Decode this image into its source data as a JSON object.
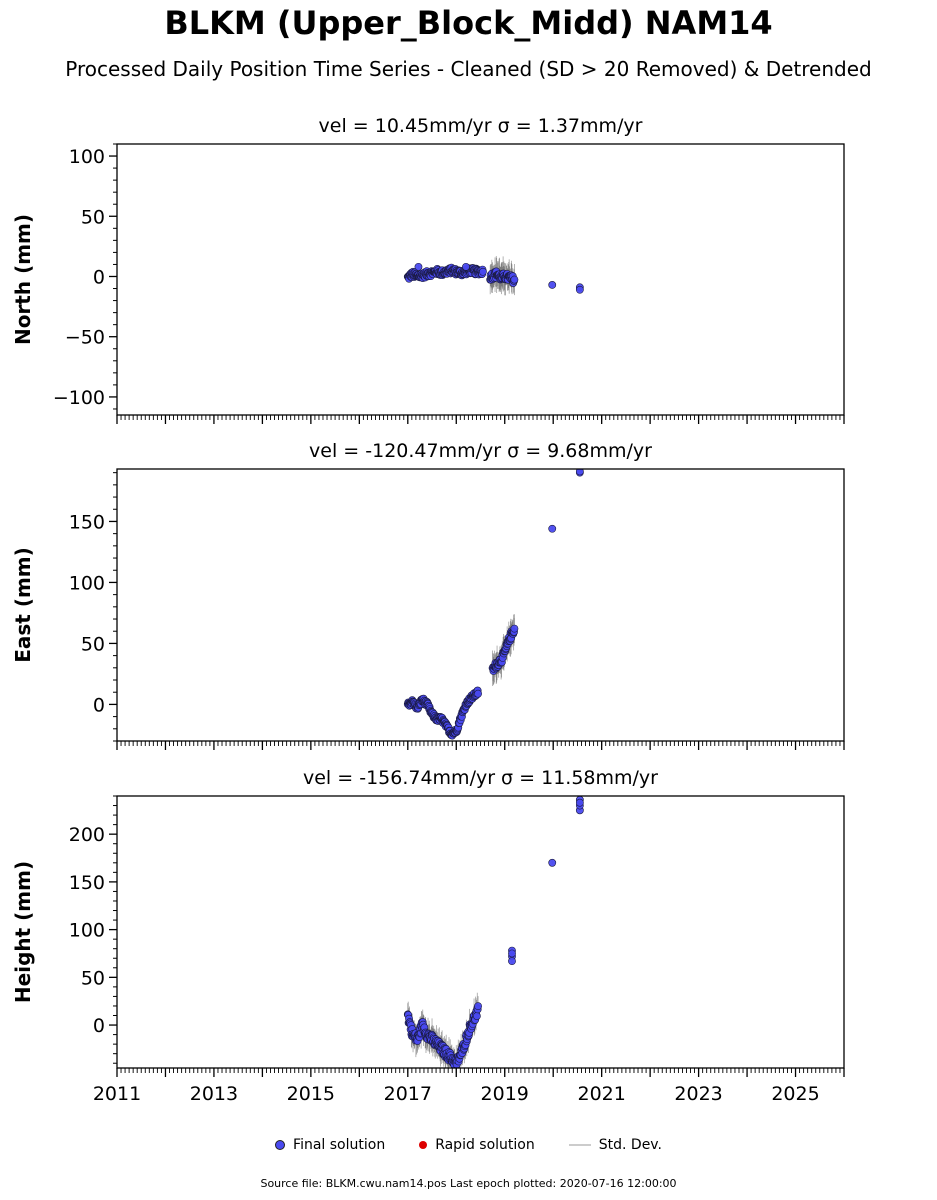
{
  "title": "BLKM (Upper_Block_Midd) NAM14",
  "subtitle": "Processed Daily Position Time Series - Cleaned (SD > 20 Removed) & Detrended",
  "legend": {
    "final": "Final solution",
    "rapid": "Rapid solution",
    "std": "Std. Dev."
  },
  "footer": "Source file: BLKM.cwu.nam14.pos  Last epoch plotted: 2020-07-16 12:00:00",
  "colors": {
    "final": "#4a4af0",
    "rapid": "#dd0000",
    "std": "#cccccc",
    "errbar": "#555555"
  },
  "chart_data": [
    {
      "type": "scatter",
      "title": "vel = 10.45mm/yr   σ = 1.37mm/yr",
      "ylabel": "North (mm)",
      "xlim": [
        2011,
        2026
      ],
      "ylim": [
        -115,
        110
      ],
      "yticks": [
        -100,
        -50,
        0,
        50,
        100
      ],
      "yticklabels": [
        "−100",
        "−50",
        "0",
        "50",
        "100"
      ],
      "x_tick_labels": [],
      "series": [
        {
          "segments": [
            {
              "x0": 2017.0,
              "x1": 2018.55,
              "pts": [
                [
                  0.0,
                  -1
                ],
                [
                  0.1,
                  2
                ],
                [
                  0.2,
                  0
                ],
                [
                  0.3,
                  1
                ],
                [
                  0.4,
                  2
                ],
                [
                  0.5,
                  3
                ],
                [
                  0.6,
                  4
                ],
                [
                  0.7,
                  3
                ],
                [
                  0.8,
                  4
                ],
                [
                  0.9,
                  5
                ],
                [
                  1.0,
                  4
                ],
                [
                  1.1,
                  3
                ],
                [
                  1.2,
                  4
                ],
                [
                  1.3,
                  5
                ],
                [
                  1.4,
                  4
                ],
                [
                  1.55,
                  4
                ]
              ],
              "spread": 2.5,
              "err": 1.5
            },
            {
              "x0": 2018.7,
              "x1": 2019.2,
              "pts": [
                [
                  0.0,
                  0
                ],
                [
                  0.15,
                  1
                ],
                [
                  0.3,
                  2
                ],
                [
                  0.45,
                  -1
                ],
                [
                  0.6,
                  0
                ],
                [
                  0.75,
                  -1
                ],
                [
                  0.9,
                  -2
                ],
                [
                  1.0,
                  -3
                ]
              ],
              "spread": 3,
              "err": 10
            }
          ],
          "extra": [
            [
              2017.22,
              8
            ],
            [
              2018.2,
              8
            ],
            [
              2019.98,
              -7
            ],
            [
              2020.55,
              -9
            ],
            [
              2020.55,
              -11
            ]
          ]
        }
      ]
    },
    {
      "type": "scatter",
      "title": "vel = -120.47mm/yr   σ = 9.68mm/yr",
      "ylabel": "East (mm)",
      "xlim": [
        2011,
        2026
      ],
      "ylim": [
        -30,
        193
      ],
      "yticks": [
        0,
        50,
        100,
        150
      ],
      "yticklabels": [
        "0",
        "50",
        "100",
        "150"
      ],
      "x_tick_labels": [],
      "series": [
        {
          "segments": [
            {
              "x0": 2017.0,
              "x1": 2018.45,
              "pts": [
                [
                  0.0,
                  0
                ],
                [
                  0.1,
                  2
                ],
                [
                  0.2,
                  -3
                ],
                [
                  0.3,
                  4
                ],
                [
                  0.4,
                  0
                ],
                [
                  0.5,
                  -8
                ],
                [
                  0.6,
                  -12
                ],
                [
                  0.7,
                  -12
                ],
                [
                  0.8,
                  -18
                ],
                [
                  0.9,
                  -24
                ],
                [
                  1.0,
                  -22
                ],
                [
                  1.1,
                  -10
                ],
                [
                  1.2,
                  0
                ],
                [
                  1.3,
                  5
                ],
                [
                  1.45,
                  10
                ]
              ],
              "spread": 2,
              "err": 1.5
            },
            {
              "x0": 2018.75,
              "x1": 2019.2,
              "pts": [
                [
                  0.0,
                  28
                ],
                [
                  0.15,
                  32
                ],
                [
                  0.3,
                  35
                ],
                [
                  0.45,
                  38
                ],
                [
                  0.6,
                  45
                ],
                [
                  0.8,
                  55
                ],
                [
                  1.0,
                  62
                ]
              ],
              "spread": 3,
              "err": 10
            }
          ],
          "extra": [
            [
              2019.98,
              144
            ],
            [
              2020.55,
              190
            ],
            [
              2020.55,
              191
            ]
          ]
        }
      ]
    },
    {
      "type": "scatter",
      "title": "vel = -156.74mm/yr   σ = 11.58mm/yr",
      "ylabel": "Height (mm)",
      "xlim": [
        2011,
        2026
      ],
      "ylim": [
        -45,
        240
      ],
      "yticks": [
        0,
        50,
        100,
        150,
        200
      ],
      "yticklabels": [
        "0",
        "50",
        "100",
        "150",
        "200"
      ],
      "x_tick_labels": [
        "2011",
        "2013",
        "2015",
        "2017",
        "2019",
        "2021",
        "2023",
        "2025"
      ],
      "series": [
        {
          "segments": [
            {
              "x0": 2017.0,
              "x1": 2018.45,
              "pts": [
                [
                  0.0,
                  10
                ],
                [
                  0.1,
                  -10
                ],
                [
                  0.2,
                  -15
                ],
                [
                  0.3,
                  0
                ],
                [
                  0.4,
                  -10
                ],
                [
                  0.5,
                  -15
                ],
                [
                  0.6,
                  -20
                ],
                [
                  0.7,
                  -25
                ],
                [
                  0.8,
                  -30
                ],
                [
                  0.9,
                  -35
                ],
                [
                  1.0,
                  -40
                ],
                [
                  1.1,
                  -30
                ],
                [
                  1.2,
                  -15
                ],
                [
                  1.3,
                  0
                ],
                [
                  1.45,
                  15
                ]
              ],
              "spread": 5,
              "err": 12
            }
          ],
          "extra": [
            [
              2019.15,
              72
            ],
            [
              2019.15,
              78
            ],
            [
              2019.15,
              67
            ],
            [
              2019.15,
              75
            ],
            [
              2019.98,
              170
            ],
            [
              2020.55,
              225
            ],
            [
              2020.55,
              230
            ],
            [
              2020.55,
              236
            ],
            [
              2020.55,
              233
            ]
          ]
        }
      ]
    }
  ]
}
